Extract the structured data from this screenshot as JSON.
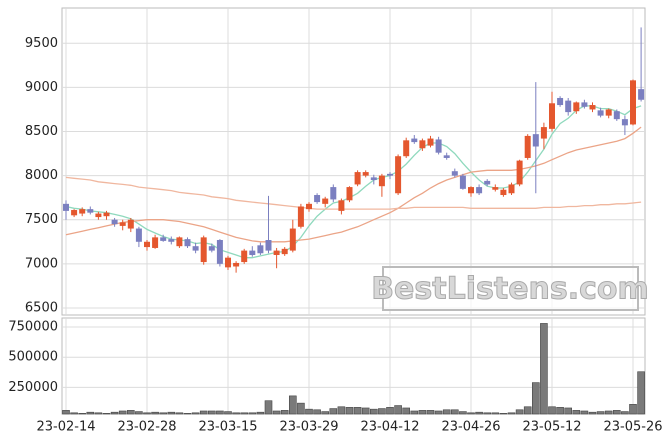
{
  "chart_data": [
    {
      "type": "candlestick",
      "open": [
        7680,
        7550,
        7570,
        7620,
        7530,
        7540,
        7500,
        7430,
        7400,
        7400,
        7190,
        7180,
        7300,
        7280,
        7200,
        7280,
        7200,
        7020,
        7200,
        7270,
        6960,
        6970,
        7020,
        7150,
        7210,
        7270,
        7100,
        7110,
        7150,
        7420,
        7620,
        7780,
        7680,
        7870,
        7600,
        7720,
        7900,
        8000,
        7980,
        7880,
        8020,
        7800,
        8220,
        8420,
        8310,
        8340,
        8410,
        8230,
        8050,
        8000,
        7800,
        7870,
        7940,
        7840,
        7780,
        7800,
        7900,
        8200,
        8470,
        8420,
        8530,
        8880,
        8850,
        8730,
        8830,
        8750,
        8740,
        8680,
        8730,
        8640,
        8580,
        8980
      ],
      "high": [
        7720,
        7620,
        7640,
        7650,
        7590,
        7600,
        7520,
        7500,
        7520,
        7420,
        7270,
        7330,
        7330,
        7310,
        7310,
        7300,
        7240,
        7320,
        7230,
        7280,
        7090,
        7030,
        7170,
        7200,
        7240,
        7770,
        7180,
        7190,
        7500,
        7680,
        7700,
        7800,
        7760,
        7900,
        7740,
        7880,
        8060,
        8060,
        8010,
        8020,
        8040,
        8240,
        8430,
        8460,
        8420,
        8450,
        8440,
        8260,
        8080,
        8020,
        7880,
        7900,
        7960,
        7900,
        7860,
        7920,
        8180,
        8470,
        9060,
        8600,
        8950,
        8900,
        8880,
        8840,
        8860,
        8830,
        8770,
        8760,
        8750,
        8680,
        9090,
        9680
      ],
      "low": [
        7500,
        7530,
        7540,
        7560,
        7500,
        7500,
        7420,
        7380,
        7360,
        7190,
        7150,
        7170,
        7250,
        7220,
        7180,
        7180,
        7120,
        6990,
        7130,
        6970,
        6930,
        6900,
        7000,
        7080,
        7100,
        7120,
        6950,
        7090,
        7130,
        7400,
        7590,
        7680,
        7640,
        7700,
        7560,
        7700,
        7880,
        7980,
        7900,
        7760,
        7960,
        7780,
        8200,
        8360,
        8280,
        8320,
        8240,
        8180,
        7980,
        7840,
        7760,
        7780,
        7880,
        7820,
        7760,
        7780,
        7880,
        8180,
        7800,
        8300,
        8500,
        8780,
        8680,
        8700,
        8760,
        8720,
        8660,
        8650,
        8620,
        8460,
        8570,
        8840
      ],
      "close": [
        7600,
        7610,
        7620,
        7580,
        7570,
        7580,
        7450,
        7470,
        7500,
        7250,
        7250,
        7300,
        7260,
        7250,
        7300,
        7200,
        7150,
        7300,
        7150,
        7000,
        7070,
        7010,
        7150,
        7100,
        7120,
        7150,
        7150,
        7170,
        7400,
        7650,
        7680,
        7700,
        7740,
        7730,
        7720,
        7870,
        8040,
        8040,
        7950,
        8000,
        8000,
        8220,
        8400,
        8380,
        8400,
        8420,
        8260,
        8200,
        8000,
        7850,
        7870,
        7800,
        7900,
        7870,
        7840,
        7900,
        8170,
        8450,
        8330,
        8550,
        8820,
        8800,
        8720,
        8830,
        8780,
        8800,
        8680,
        8750,
        8640,
        8570,
        9080,
        8860
      ],
      "up_color": "#e4572e",
      "down_color": "#7b7fc0",
      "ma_series": [
        {
          "color": "#8fd9bd",
          "values": [
            7650,
            7630,
            7620,
            7600,
            7590,
            7580,
            7560,
            7540,
            7510,
            7450,
            7390,
            7350,
            7310,
            7280,
            7270,
            7260,
            7230,
            7240,
            7220,
            7160,
            7130,
            7100,
            7070,
            7070,
            7090,
            7110,
            7130,
            7140,
            7200,
            7300,
            7430,
            7540,
            7620,
            7690,
            7710,
            7750,
            7800,
            7880,
            7950,
            7980,
            8000,
            8050,
            8130,
            8230,
            8320,
            8370,
            8370,
            8330,
            8250,
            8140,
            8040,
            7950,
            7880,
            7860,
            7860,
            7880,
            7930,
            8040,
            8170,
            8300,
            8470,
            8590,
            8650,
            8740,
            8790,
            8790,
            8760,
            8760,
            8730,
            8690,
            8760,
            8790
          ]
        },
        {
          "color": "#eba487",
          "values": [
            7330,
            7350,
            7370,
            7390,
            7410,
            7430,
            7450,
            7470,
            7480,
            7490,
            7500,
            7500,
            7500,
            7490,
            7480,
            7460,
            7440,
            7420,
            7390,
            7360,
            7330,
            7300,
            7280,
            7260,
            7250,
            7250,
            7250,
            7250,
            7260,
            7270,
            7280,
            7300,
            7320,
            7340,
            7360,
            7390,
            7420,
            7460,
            7500,
            7540,
            7580,
            7630,
            7690,
            7750,
            7800,
            7860,
            7910,
            7950,
            7980,
            8010,
            8040,
            8050,
            8060,
            8060,
            8060,
            8060,
            8070,
            8090,
            8110,
            8140,
            8180,
            8220,
            8260,
            8290,
            8310,
            8330,
            8350,
            8370,
            8390,
            8420,
            8480,
            8550
          ]
        },
        {
          "color": "#f0b79f",
          "values": [
            7980,
            7970,
            7960,
            7950,
            7930,
            7920,
            7910,
            7900,
            7890,
            7870,
            7860,
            7850,
            7840,
            7830,
            7810,
            7800,
            7790,
            7780,
            7760,
            7750,
            7740,
            7720,
            7710,
            7700,
            7690,
            7680,
            7670,
            7660,
            7650,
            7640,
            7630,
            7620,
            7620,
            7620,
            7620,
            7620,
            7620,
            7620,
            7620,
            7620,
            7620,
            7630,
            7630,
            7640,
            7640,
            7640,
            7640,
            7640,
            7640,
            7640,
            7630,
            7630,
            7630,
            7630,
            7630,
            7630,
            7630,
            7630,
            7630,
            7640,
            7640,
            7640,
            7650,
            7650,
            7660,
            7660,
            7670,
            7670,
            7680,
            7680,
            7690,
            7700
          ]
        }
      ],
      "ylim": [
        6420,
        9900
      ],
      "yticks": [
        6500,
        7000,
        7500,
        8000,
        8500,
        9000,
        9500
      ],
      "grid": true,
      "watermark": "BestListens.com"
    },
    {
      "type": "bar",
      "categories": [
        "23-02-14",
        null,
        null,
        null,
        null,
        null,
        null,
        null,
        null,
        null,
        "23-02-28",
        null,
        null,
        null,
        null,
        null,
        null,
        null,
        null,
        null,
        "23-03-15",
        null,
        null,
        null,
        null,
        null,
        null,
        null,
        null,
        null,
        "23-03-29",
        null,
        null,
        null,
        null,
        null,
        null,
        null,
        null,
        null,
        "23-04-12",
        null,
        null,
        null,
        null,
        null,
        null,
        null,
        null,
        null,
        "23-04-26",
        null,
        null,
        null,
        null,
        null,
        null,
        null,
        null,
        null,
        "23-05-12",
        null,
        null,
        null,
        null,
        null,
        null,
        null,
        null,
        null,
        "23-05-26",
        null
      ],
      "values": [
        60000,
        40000,
        35000,
        45000,
        40000,
        35000,
        45000,
        55000,
        60000,
        50000,
        40000,
        45000,
        40000,
        45000,
        40000,
        35000,
        40000,
        55000,
        55000,
        55000,
        50000,
        40000,
        40000,
        40000,
        45000,
        140000,
        55000,
        60000,
        180000,
        120000,
        70000,
        65000,
        50000,
        75000,
        90000,
        85000,
        85000,
        80000,
        70000,
        75000,
        85000,
        100000,
        80000,
        55000,
        60000,
        60000,
        55000,
        65000,
        65000,
        50000,
        40000,
        45000,
        40000,
        40000,
        35000,
        40000,
        65000,
        90000,
        290000,
        780000,
        90000,
        85000,
        80000,
        60000,
        55000,
        45000,
        50000,
        55000,
        60000,
        50000,
        110000,
        380000
      ],
      "color": "#7a7a7a",
      "ylim": [
        30000,
        825000
      ],
      "yticks": [
        250000,
        500000,
        750000
      ],
      "grid": true
    }
  ]
}
